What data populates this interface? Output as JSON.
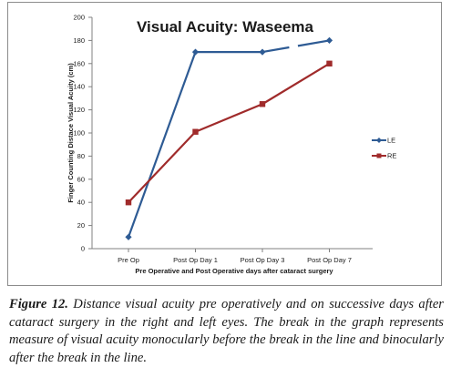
{
  "chart_data": {
    "type": "line",
    "title": "Visual Acuity: Waseema",
    "xlabel": "Pre Operative and Post Operative days after cataract surgery",
    "ylabel": "Finger Counting Distace Visual Acuity (cm)",
    "categories": [
      "Pre Op",
      "Post Op Day 1",
      "Post Op Day 3",
      "Post Op Day 7"
    ],
    "ylim": [
      0,
      200
    ],
    "yticks": [
      0,
      20,
      40,
      60,
      80,
      100,
      120,
      140,
      160,
      180,
      200
    ],
    "grid": false,
    "legend_position": "right",
    "series": [
      {
        "name": "LE",
        "values": [
          10,
          170,
          170,
          180
        ],
        "color": "#2e5b94",
        "marker": "diamond"
      },
      {
        "name": "RE",
        "values": [
          40,
          101,
          125,
          160
        ],
        "color": "#a02b2b",
        "marker": "square"
      }
    ],
    "annotations": [
      "Line break in LE series between Post Op Day 3 and Post Op Day 7"
    ]
  },
  "caption": {
    "label": "Figure 12.",
    "text": " Distance visual acuity pre operatively and on successive days after cataract surgery in the right and left eyes. The break in the graph represents measure of visual acuity monocularly before the break in the line and binocularly after the break in the line."
  }
}
